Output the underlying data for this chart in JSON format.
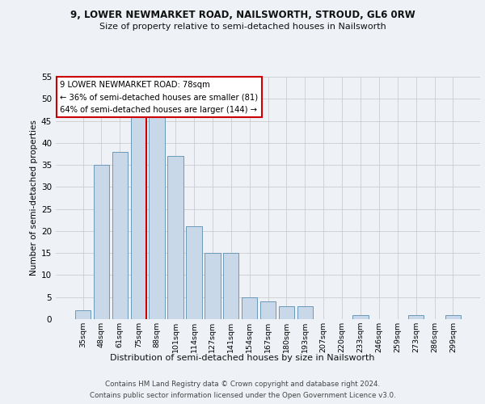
{
  "title1": "9, LOWER NEWMARKET ROAD, NAILSWORTH, STROUD, GL6 0RW",
  "title2": "Size of property relative to semi-detached houses in Nailsworth",
  "xlabel": "Distribution of semi-detached houses by size in Nailsworth",
  "ylabel": "Number of semi-detached properties",
  "categories": [
    "35sqm",
    "48sqm",
    "61sqm",
    "75sqm",
    "88sqm",
    "101sqm",
    "114sqm",
    "127sqm",
    "141sqm",
    "154sqm",
    "167sqm",
    "180sqm",
    "193sqm",
    "207sqm",
    "220sqm",
    "233sqm",
    "246sqm",
    "259sqm",
    "273sqm",
    "286sqm",
    "299sqm"
  ],
  "values": [
    2,
    35,
    38,
    46,
    46,
    37,
    21,
    15,
    15,
    5,
    4,
    3,
    3,
    0,
    0,
    1,
    0,
    0,
    1,
    0,
    1
  ],
  "bar_color": "#c8d8e8",
  "bar_edge_color": "#5b8db0",
  "property_bin_index": 3,
  "annotation_title": "9 LOWER NEWMARKET ROAD: 78sqm",
  "annotation_line1": "← 36% of semi-detached houses are smaller (81)",
  "annotation_line2": "64% of semi-detached houses are larger (144) →",
  "vline_color": "#cc0000",
  "footer1": "Contains HM Land Registry data © Crown copyright and database right 2024.",
  "footer2": "Contains public sector information licensed under the Open Government Licence v3.0.",
  "ylim": [
    0,
    55
  ],
  "yticks": [
    0,
    5,
    10,
    15,
    20,
    25,
    30,
    35,
    40,
    45,
    50,
    55
  ],
  "bg_color": "#eef2f7",
  "grid_color": "#cccccc"
}
